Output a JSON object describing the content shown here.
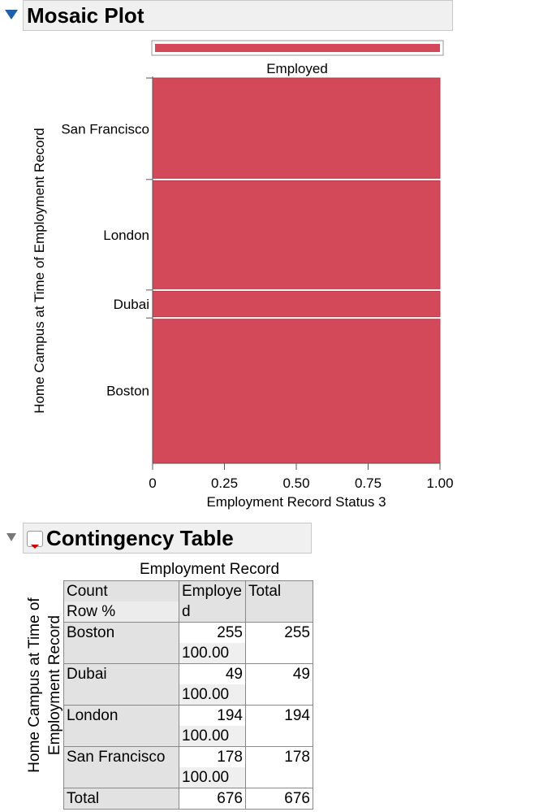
{
  "chart_data": {
    "type": "mosaic",
    "title": "Mosaic Plot",
    "x_label": "Employment Record Status 3",
    "y_label": "Home Campus at Time of Employment Record",
    "categories": [
      "Boston",
      "Dubai",
      "London",
      "San Francisco"
    ],
    "series": [
      {
        "name": "Employed",
        "color": "#d3495a",
        "values": [
          255,
          49,
          194,
          178
        ]
      }
    ],
    "xlim": [
      0,
      1
    ],
    "xticks": [
      0,
      0.25,
      {
        "value": 0.5,
        "label": "0.50"
      },
      0.75,
      {
        "value": 1,
        "label": "1.00"
      }
    ]
  },
  "contingency_table": {
    "title": "Contingency Table",
    "column_variable": "Employment Record",
    "row_variable": [
      "Home Campus at Time of",
      "Employment Record"
    ],
    "corner": [
      "Count",
      "Row %"
    ],
    "columns": [
      "Employed",
      "Total"
    ],
    "rows": [
      {
        "label": "Boston",
        "count": 255,
        "row_pct": "100.00",
        "total": 255
      },
      {
        "label": "Dubai",
        "count": 49,
        "row_pct": "100.00",
        "total": 49
      },
      {
        "label": "London",
        "count": 194,
        "row_pct": "100.00",
        "total": 194
      },
      {
        "label": "San Francisco",
        "count": 178,
        "row_pct": "100.00",
        "total": 178
      }
    ],
    "total_row": {
      "label": "Total",
      "count": 676,
      "total": 676
    }
  }
}
